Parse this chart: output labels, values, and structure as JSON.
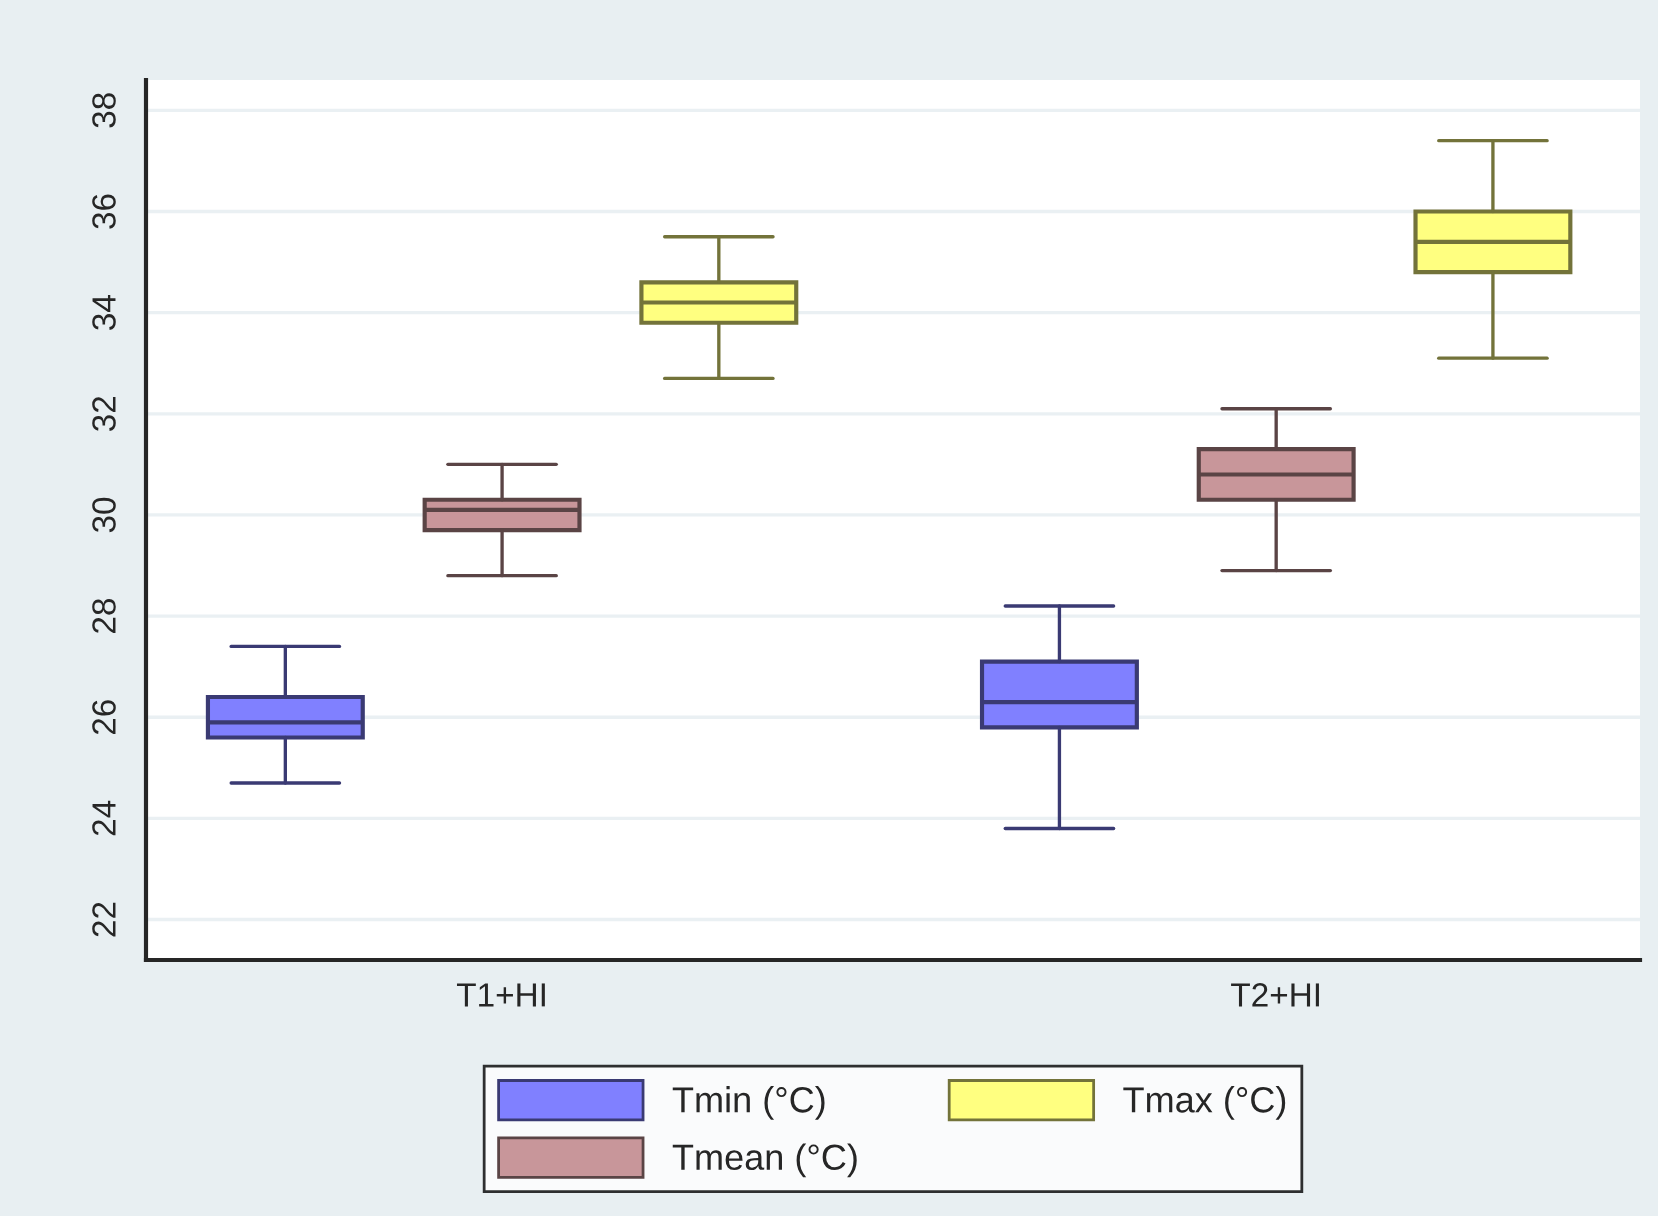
{
  "chart_data": {
    "type": "box",
    "categories": [
      "T1+HI",
      "T2+HI"
    ],
    "series": [
      {
        "name": "Tmin (°C)",
        "color": "#8080ff",
        "boxes": [
          {
            "low": 24.7,
            "q1": 25.6,
            "median": 25.9,
            "q3": 26.4,
            "high": 27.4
          },
          {
            "low": 23.8,
            "q1": 25.8,
            "median": 26.3,
            "q3": 27.1,
            "high": 28.2
          }
        ]
      },
      {
        "name": "Tmean (°C)",
        "color": "#c8969a",
        "boxes": [
          {
            "low": 28.8,
            "q1": 29.7,
            "median": 30.1,
            "q3": 30.3,
            "high": 31.0
          },
          {
            "low": 28.9,
            "q1": 30.3,
            "median": 30.8,
            "q3": 31.3,
            "high": 32.1
          }
        ]
      },
      {
        "name": "Tmax (°C)",
        "color": "#ffff80",
        "boxes": [
          {
            "low": 32.7,
            "q1": 33.8,
            "median": 34.2,
            "q3": 34.6,
            "high": 35.5
          },
          {
            "low": 33.1,
            "q1": 34.8,
            "median": 35.4,
            "q3": 36.0,
            "high": 37.4
          }
        ]
      }
    ],
    "ylim": [
      21.2,
      38.6
    ],
    "yticks": [
      22,
      24,
      26,
      28,
      30,
      32,
      34,
      36,
      38
    ],
    "grid": "y",
    "legend": "bottom"
  }
}
